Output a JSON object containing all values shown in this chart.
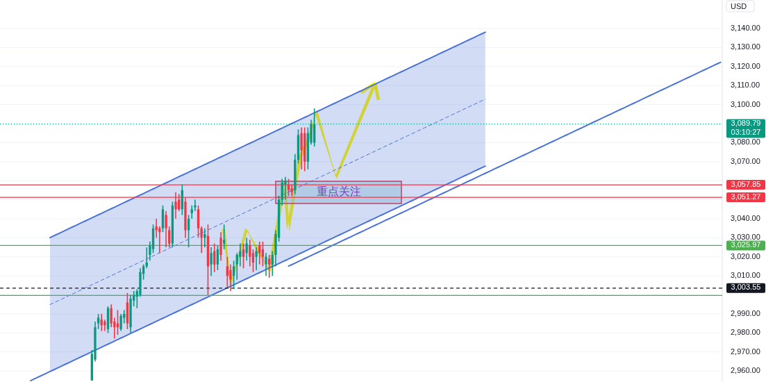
{
  "chart_data": {
    "type": "candlestick",
    "categories": [
      null,
      null,
      null,
      null,
      null,
      null,
      null,
      null,
      null,
      null,
      null,
      null,
      null,
      null,
      null,
      null,
      null,
      null,
      null,
      null,
      null,
      null,
      null,
      null,
      null,
      null,
      null,
      null,
      null,
      null,
      null,
      null,
      null,
      null,
      null,
      null,
      null,
      null,
      null,
      null,
      null,
      null,
      null,
      null,
      null,
      null,
      null,
      null,
      null,
      null,
      null,
      null,
      null,
      null,
      null,
      null,
      null,
      null,
      null,
      null,
      null,
      null,
      null,
      null,
      null,
      null,
      null,
      null,
      null,
      null,
      null,
      null,
      null,
      null,
      null,
      null,
      null,
      null,
      null,
      null,
      null,
      null,
      null,
      null,
      null,
      null,
      null,
      null,
      null,
      null,
      null,
      null,
      null,
      null,
      null,
      null,
      null,
      null,
      null,
      null,
      null,
      null,
      null,
      null,
      null,
      null,
      null,
      null,
      null,
      null,
      null,
      null,
      null,
      null,
      null,
      null,
      null,
      null,
      null,
      null,
      null,
      null,
      null,
      null,
      null,
      null,
      null,
      null,
      null,
      null,
      null,
      null,
      null,
      null,
      null,
      null,
      null,
      null,
      null,
      null,
      null,
      null,
      null,
      null,
      null,
      null,
      null,
      null,
      null,
      null,
      null,
      null,
      null,
      null,
      null,
      null,
      null,
      null,
      null,
      null,
      null,
      null,
      null,
      null,
      null,
      null,
      null,
      null,
      null,
      null,
      null,
      null,
      null,
      null,
      null,
      null,
      null,
      null,
      null,
      null,
      null,
      null,
      null,
      null,
      null,
      null,
      null,
      null,
      null,
      null,
      null,
      null,
      null,
      null,
      null,
      null,
      null,
      null,
      null,
      null,
      null,
      null,
      null,
      null,
      null,
      null,
      null,
      null,
      null,
      null,
      null,
      null,
      null,
      null,
      null,
      null,
      null,
      null,
      null,
      null,
      null,
      null,
      null,
      null
    ],
    "ohlc": [
      null,
      null,
      null,
      null,
      null,
      null,
      null,
      null,
      null,
      null,
      null,
      null,
      null,
      null,
      null,
      null,
      null,
      null,
      null,
      null,
      null,
      null,
      null,
      null,
      null,
      null,
      null,
      null,
      [
        2955,
        2971,
        2955,
        2969
      ],
      [
        2966,
        2986,
        2965,
        2983
      ],
      [
        2985,
        2990,
        2982,
        2988
      ],
      [
        2987,
        2990,
        2981,
        2984
      ],
      [
        2986,
        2987,
        2981,
        2984
      ],
      [
        2982,
        2994,
        2980,
        2993
      ],
      [
        2993,
        2995,
        2983,
        2985
      ],
      [
        2986,
        2988,
        2977,
        2983
      ],
      [
        2985,
        2992,
        2979,
        2983
      ],
      [
        2982,
        2990,
        2981,
        2989
      ],
      [
        2988,
        2992,
        2985,
        2990
      ],
      [
        2996,
        3001,
        2982,
        2985
      ],
      [
        2983,
        3000,
        2980,
        2998
      ],
      [
        2997,
        3002,
        2994,
        3000
      ],
      [
        2999,
        3003,
        2993,
        3002
      ],
      [
        3000,
        3014,
        2999,
        3012
      ],
      [
        3011,
        3016,
        3008,
        3015
      ],
      [
        3015,
        3025,
        3014,
        3017
      ],
      [
        3021,
        3028,
        3018,
        3026
      ],
      [
        3024,
        3037,
        3022,
        3035
      ],
      [
        3036,
        3040,
        3030,
        3034
      ],
      [
        3035,
        3036,
        3022,
        3033
      ],
      [
        3035,
        3047,
        3033,
        3045
      ],
      [
        3042,
        3044,
        3025,
        3035
      ],
      [
        3034,
        3036,
        3025,
        3027
      ],
      [
        3027,
        3049,
        3025,
        3047
      ],
      [
        3049,
        3054,
        3040,
        3045
      ],
      [
        3050,
        3053,
        3044,
        3045
      ],
      [
        3045,
        3058,
        3042,
        3055
      ],
      [
        3049,
        3051,
        3030,
        3034
      ],
      [
        3034,
        3042,
        3025,
        3040
      ],
      [
        3043,
        3047,
        3040,
        3045
      ],
      [
        3046,
        3050,
        3044,
        3047
      ],
      [
        3045,
        3047,
        3030,
        3035
      ],
      [
        3035,
        3036,
        3022,
        3030
      ],
      [
        3030,
        3035,
        3025,
        3032
      ],
      [
        3031,
        3037,
        3000,
        3015
      ],
      [
        3016,
        3025,
        3010,
        3022
      ],
      [
        3023,
        3027,
        3012,
        3016
      ],
      [
        3016,
        3026,
        3013,
        3024
      ],
      [
        3030,
        3033,
        3018,
        3021
      ],
      [
        3027,
        3037,
        3024,
        3029
      ],
      [
        3015,
        3020,
        3004,
        3010
      ],
      [
        3013,
        3016,
        3002,
        3008
      ],
      [
        3010,
        3018,
        3003,
        3015
      ],
      [
        3016,
        3022,
        3008,
        3021
      ],
      [
        3020,
        3027,
        3015,
        3023
      ],
      [
        3024,
        3027,
        3014,
        3020
      ],
      [
        3022,
        3030,
        3018,
        3027
      ],
      [
        3026,
        3029,
        3015,
        3020
      ],
      [
        3022,
        3024,
        3012,
        3017
      ],
      [
        3020,
        3025,
        3013,
        3023
      ],
      [
        3026,
        3028,
        3016,
        3022
      ],
      [
        3024,
        3028,
        3015,
        3020
      ],
      [
        3016,
        3022,
        3010,
        3020
      ],
      [
        3019,
        3021,
        3009,
        3016
      ],
      [
        3016,
        3023,
        3010,
        3021
      ],
      [
        3021,
        3034,
        3015,
        3032
      ],
      [
        3030,
        3052,
        3028,
        3050
      ],
      [
        3050,
        3061,
        3047,
        3059
      ],
      [
        3058,
        3062,
        3050,
        3060
      ],
      [
        3058,
        3061,
        3052,
        3055
      ],
      [
        3056,
        3058,
        3052,
        3054
      ],
      [
        3055,
        3074,
        3053,
        3071
      ],
      [
        3071,
        3087,
        3069,
        3084
      ],
      [
        3085,
        3088,
        3066,
        3076
      ],
      [
        3085,
        3088,
        3065,
        3070
      ],
      [
        3070,
        3088,
        3066,
        3085
      ],
      [
        3080,
        3092,
        3079,
        3090
      ],
      [
        3080,
        3098,
        3078,
        3089.79
      ],
      null,
      null,
      null,
      null,
      null,
      null,
      null,
      null,
      null,
      null,
      null,
      null,
      null,
      null,
      null,
      null,
      null,
      null,
      null,
      null,
      null,
      null,
      null,
      null,
      null,
      null,
      null,
      null,
      null,
      null,
      null,
      null,
      null,
      null,
      null,
      null,
      null,
      null,
      null,
      null,
      null,
      null,
      null,
      null,
      null,
      null,
      null,
      null,
      null,
      null,
      null,
      null,
      null,
      null,
      null,
      null,
      null,
      null,
      null,
      null,
      null,
      null,
      null,
      null,
      null,
      null,
      null,
      null,
      null,
      null,
      null,
      null,
      null,
      null,
      null,
      null,
      null,
      null,
      null,
      null,
      null,
      null,
      null,
      null,
      null,
      null,
      null,
      null,
      null,
      null,
      null,
      null,
      null,
      null,
      null,
      null,
      null,
      null,
      null,
      null,
      null,
      null,
      null,
      null,
      null,
      null,
      null,
      null,
      null,
      null,
      null,
      null,
      null,
      null,
      null,
      null,
      null,
      null,
      null,
      null,
      null,
      null,
      null,
      null,
      null,
      null
    ],
    "series": [
      {
        "type": "line",
        "color": "#4a72d9",
        "values": [
          null,
          null,
          null,
          null,
          null,
          null,
          null,
          null,
          null,
          null,
          null,
          null,
          null,
          null,
          null,
          3030.1,
          3030.9,
          3031.7,
          3032.5,
          3033.3,
          3034.1,
          3034.9,
          3035.7,
          3036.5,
          3037.3,
          3038.1,
          3038.9,
          3039.7,
          3040.5,
          3041.3,
          3042.1,
          3042.9,
          3043.7,
          3044.5,
          3045.3,
          3046.1,
          3046.9,
          3047.7,
          3048.5,
          3049.3,
          3050.1,
          3050.9,
          3051.7,
          3052.5,
          3053.3,
          3054.1,
          3054.9,
          3055.7,
          3056.5,
          3057.3,
          3058.1,
          3058.9,
          3059.7,
          3060.5,
          3061.3,
          3062.1,
          3062.9,
          3063.7,
          3064.5,
          3065.3,
          3066.1,
          3066.9,
          3067.7,
          3068.5,
          3069.3,
          3070.1,
          3070.9,
          3071.7,
          3072.5,
          3073.3,
          3074.1,
          3074.9,
          3075.7,
          3076.5,
          3077.3,
          3078.1,
          3078.9,
          3079.7,
          3080.5,
          3081.3,
          3082.1,
          3082.9,
          3083.7,
          3084.5,
          3085.3,
          3086.1,
          3086.9,
          3087.7,
          3088.5,
          3089.3,
          3090.1,
          3090.9,
          3091.7,
          3092.5,
          3093.3,
          3094.1,
          3094.9,
          3095.7,
          3096.5,
          3097.3,
          3098.1,
          3098.9,
          3099.7,
          3100.5,
          3101.3,
          3102.1,
          3102.9,
          3103.7,
          3104.5,
          3105.3,
          3106.1,
          3106.9,
          3107.7,
          3108.5,
          3109.3,
          3110.1,
          3110.9,
          3111.7,
          3112.5,
          3113.3,
          3114.1,
          3114.9,
          3115.7,
          3116.5,
          3117.3,
          3118.1,
          3118.9,
          3119.7,
          3120.5,
          3121.3,
          3122.1,
          3122.9,
          3123.7,
          3124.5,
          3125.3,
          3126.1,
          3126.9,
          3127.7,
          3128.5,
          3129.3,
          3130.1,
          3130.9,
          3131.7,
          3132.5,
          3133.3,
          3134.1,
          3134.9,
          3135.7,
          3136.5,
          3137.3,
          3138.1,
          null,
          null,
          null,
          null,
          null,
          null,
          null,
          null,
          null,
          null,
          null,
          null,
          null,
          null,
          null,
          null,
          null,
          null,
          null,
          null,
          null,
          null,
          null,
          null,
          null,
          null,
          null,
          null,
          null,
          null,
          null,
          null,
          null,
          null,
          null,
          null,
          null,
          null,
          null,
          null,
          null,
          null,
          null,
          null,
          null,
          null,
          null,
          null,
          null,
          null,
          null,
          null,
          null,
          null,
          null,
          null,
          null,
          null,
          null,
          null,
          null,
          null,
          null,
          null,
          null,
          null,
          null,
          null,
          null,
          null,
          null,
          null,
          null
        ]
      },
      {
        "type": "line",
        "color": "#4a72d9",
        "values": [
          null,
          null,
          null,
          null,
          null,
          null,
          null,
          null,
          null,
          2954.9,
          2955.7,
          2956.5,
          2957.3,
          2958.1,
          2958.9,
          2959.7,
          2960.5,
          2961.3,
          2962.1,
          2962.9,
          2963.7,
          2964.5,
          2965.3,
          2966.1,
          2966.9,
          2967.7,
          2968.5,
          2969.3,
          2970.1,
          2970.9,
          2971.7,
          2972.5,
          2973.3,
          2974.1,
          2974.9,
          2975.7,
          2976.5,
          2977.3,
          2978.1,
          2978.9,
          2979.7,
          2980.5,
          2981.3,
          2982.1,
          2982.9,
          2983.7,
          2984.5,
          2985.3,
          2986.1,
          2986.9,
          2987.7,
          2988.5,
          2989.3,
          2990.1,
          2990.9,
          2991.7,
          2992.5,
          2993.3,
          2994.1,
          2994.9,
          2995.7,
          2996.5,
          2997.3,
          2998.1,
          2998.9,
          2999.7,
          3000.5,
          3001.3,
          3002.1,
          3002.9,
          3003.7,
          3004.5,
          3005.3,
          3006.1,
          3006.9,
          3007.7,
          3008.5,
          3009.3,
          3010.1,
          3010.9,
          3011.7,
          3012.5,
          3013.3,
          3014.1,
          3014.9,
          3015.7,
          3016.5,
          3017.3,
          3018.1,
          3018.9,
          3019.7,
          3020.5,
          3021.3,
          3022.1,
          3022.9,
          3023.7,
          3024.5,
          3025.3,
          3026.1,
          3026.9,
          3027.7,
          3028.5,
          3029.3,
          3030.1,
          3030.9,
          3031.7,
          3032.5,
          3033.3,
          3034.1,
          3034.9,
          3035.7,
          3036.5,
          3037.3,
          3038.1,
          3038.9,
          3039.7,
          3040.5,
          3041.3,
          3042.1,
          3042.9,
          3043.7,
          3044.5,
          3045.3,
          3046.1,
          3046.9,
          3047.7,
          3048.5,
          3049.3,
          3050.1,
          3050.9,
          3051.7,
          3052.5,
          3053.3,
          3054.1,
          3054.9,
          3055.7,
          3056.5,
          3057.3,
          3058.1,
          3058.9,
          3059.7,
          3060.5,
          3061.3,
          3062.1,
          3062.9,
          3063.7,
          3064.5,
          3065.3,
          3066.1,
          3066.9,
          3067.7,
          null,
          null,
          null,
          null,
          null,
          null,
          null,
          null,
          null,
          null,
          null,
          null,
          null,
          null,
          null,
          null,
          null,
          null,
          null,
          null,
          null,
          null,
          null,
          null,
          null,
          null,
          null,
          null,
          null,
          null,
          null,
          null,
          null,
          null,
          null,
          null,
          null,
          null,
          null,
          null,
          null,
          null,
          null,
          null,
          null,
          null,
          null,
          null,
          null,
          null,
          null,
          null,
          null,
          null,
          null,
          null,
          null,
          null,
          null,
          null,
          null,
          null,
          null,
          null,
          null,
          null,
          null,
          null,
          null,
          null,
          null,
          null,
          null
        ]
      },
      {
        "type": "line",
        "color": "#4a72d9",
        "line_style": "dashed",
        "values": [
          null,
          null,
          null,
          null,
          null,
          null,
          null,
          null,
          null,
          null,
          null,
          null,
          null,
          null,
          null,
          2994.9,
          2995.7,
          2996.5,
          2997.3,
          2998.1,
          2998.9,
          2999.7,
          3000.5,
          3001.3,
          3002.1,
          3002.9,
          3003.7,
          3004.5,
          3005.3,
          3006.1,
          3006.9,
          3007.7,
          3008.5,
          3009.3,
          3010.1,
          3010.9,
          3011.7,
          3012.5,
          3013.3,
          3014.1,
          3014.9,
          3015.7,
          3016.5,
          3017.3,
          3018.1,
          3018.9,
          3019.7,
          3020.5,
          3021.3,
          3022.1,
          3022.9,
          3023.7,
          3024.5,
          3025.3,
          3026.1,
          3026.9,
          3027.7,
          3028.5,
          3029.3,
          3030.1,
          3030.9,
          3031.7,
          3032.5,
          3033.3,
          3034.1,
          3034.9,
          3035.7,
          3036.5,
          3037.3,
          3038.1,
          3038.9,
          3039.7,
          3040.5,
          3041.3,
          3042.1,
          3042.9,
          3043.7,
          3044.5,
          3045.3,
          3046.1,
          3046.9,
          3047.7,
          3048.5,
          3049.3,
          3050.1,
          3050.9,
          3051.7,
          3052.5,
          3053.3,
          3054.1,
          3054.9,
          3055.7,
          3056.5,
          3057.3,
          3058.1,
          3058.9,
          3059.7,
          3060.5,
          3061.3,
          3062.1,
          3062.9,
          3063.7,
          3064.5,
          3065.3,
          3066.1,
          3066.9,
          3067.7,
          3068.5,
          3069.3,
          3070.1,
          3070.9,
          3071.7,
          3072.5,
          3073.3,
          3074.1,
          3074.9,
          3075.7,
          3076.5,
          3077.3,
          3078.1,
          3078.9,
          3079.7,
          3080.5,
          3081.3,
          3082.1,
          3082.9,
          3083.7,
          3084.5,
          3085.3,
          3086.1,
          3086.9,
          3087.7,
          3088.5,
          3089.3,
          3090.1,
          3090.9,
          3091.7,
          3092.5,
          3093.3,
          3094.1,
          3094.9,
          3095.7,
          3096.5,
          3097.3,
          3098.1,
          3098.9,
          3099.7,
          3100.5,
          3101.3,
          3102.1,
          3102.9,
          null,
          null,
          null,
          null,
          null,
          null,
          null,
          null,
          null,
          null,
          null,
          null,
          null,
          null,
          null,
          null,
          null,
          null,
          null,
          null,
          null,
          null,
          null,
          null,
          null,
          null,
          null,
          null,
          null,
          null,
          null,
          null,
          null,
          null,
          null,
          null,
          null,
          null,
          null,
          null,
          null,
          null,
          null,
          null,
          null,
          null,
          null,
          null,
          null,
          null,
          null,
          null,
          null,
          null,
          null,
          null,
          null,
          null,
          null,
          null,
          null,
          null,
          null,
          null,
          null,
          null,
          null,
          null,
          null,
          null,
          null,
          null,
          null
        ],
        "lower": [
          null,
          null,
          null,
          null,
          null,
          null,
          null,
          null,
          null,
          null,
          null,
          null,
          null,
          null,
          null,
          2959.7,
          2960.5,
          2961.3,
          2962.1,
          2962.9,
          2963.7,
          2964.5,
          2965.3,
          2966.1,
          2966.9,
          2967.7,
          2968.5,
          2969.3,
          2970.1,
          2970.9,
          2971.7,
          2972.5,
          2973.3,
          2974.1,
          2974.9,
          2975.7,
          2976.5,
          2977.3,
          2978.1,
          2978.9,
          2979.7,
          2980.5,
          2981.3,
          2982.1,
          2982.9,
          2983.7,
          2984.5,
          2985.3,
          2986.1,
          2986.9,
          2987.7,
          2988.5,
          2989.3,
          2990.1,
          2990.9,
          2991.7,
          2992.5,
          2993.3,
          2994.1,
          2994.9,
          2995.7,
          2996.5,
          2997.3,
          2998.1,
          2998.9,
          2999.7,
          3000.5,
          3001.3,
          3002.1,
          3002.9,
          3003.7,
          3004.5,
          3005.3,
          3006.1,
          3006.9,
          3007.7,
          3008.5,
          3009.3,
          3010.1,
          3010.9,
          3011.7,
          3012.5,
          3013.3,
          3014.1,
          3014.9,
          3015.7,
          3016.5,
          3017.3,
          3018.1,
          3018.9,
          3019.7,
          3020.5,
          3021.3,
          3022.1,
          3022.9,
          3023.7,
          3024.5,
          3025.3,
          3026.1,
          3026.9,
          3027.7,
          3028.5,
          3029.3,
          3030.1,
          3030.9,
          3031.7,
          3032.5,
          3033.3,
          3034.1,
          3034.9,
          3035.7,
          3036.5,
          3037.3,
          3038.1,
          3038.9,
          3039.7,
          3040.5,
          3041.3,
          3042.1,
          3042.9,
          3043.7,
          3044.5,
          3045.3,
          3046.1,
          3046.9,
          3047.7,
          3048.5,
          3049.3,
          3050.1,
          3050.9,
          3051.7,
          3052.5,
          3053.3,
          3054.1,
          3054.9,
          3055.7,
          3056.5,
          3057.3,
          3058.1,
          3058.9,
          3059.7,
          3060.5,
          3061.3,
          3062.1,
          3062.9,
          3063.7,
          3064.5,
          3065.3,
          3066.1,
          3066.9,
          3067.7,
          null,
          null,
          null,
          null,
          null,
          null,
          null,
          null,
          null,
          null,
          null,
          null,
          null,
          null,
          null,
          null,
          null,
          null,
          null,
          null,
          null,
          null,
          null,
          null,
          null,
          null,
          null,
          null,
          null,
          null,
          null,
          null,
          null,
          null,
          null,
          null,
          null,
          null,
          null,
          null,
          null,
          null,
          null,
          null,
          null,
          null,
          null,
          null,
          null,
          null,
          null,
          null,
          null,
          null,
          null,
          null,
          null,
          null,
          null,
          null,
          null,
          null,
          null,
          null,
          null,
          null,
          null,
          null,
          null,
          null,
          null,
          null,
          null
        ],
        "upper": [
          null,
          null,
          null,
          null,
          null,
          null,
          null,
          null,
          null,
          null,
          null,
          null,
          null,
          null,
          null,
          3030.1,
          3030.9,
          3031.7,
          3032.5,
          3033.3,
          3034.1,
          3034.9,
          3035.7,
          3036.5,
          3037.3,
          3038.1,
          3038.9,
          3039.7,
          3040.5,
          3041.3,
          3042.1,
          3042.9,
          3043.7,
          3044.5,
          3045.3,
          3046.1,
          3046.9,
          3047.7,
          3048.5,
          3049.3,
          3050.1,
          3050.9,
          3051.7,
          3052.5,
          3053.3,
          3054.1,
          3054.9,
          3055.7,
          3056.5,
          3057.3,
          3058.1,
          3058.9,
          3059.7,
          3060.5,
          3061.3,
          3062.1,
          3062.9,
          3063.7,
          3064.5,
          3065.3,
          3066.1,
          3066.9,
          3067.7,
          3068.5,
          3069.3,
          3070.1,
          3070.9,
          3071.7,
          3072.5,
          3073.3,
          3074.1,
          3074.9,
          3075.7,
          3076.5,
          3077.3,
          3078.1,
          3078.9,
          3079.7,
          3080.5,
          3081.3,
          3082.1,
          3082.9,
          3083.7,
          3084.5,
          3085.3,
          3086.1,
          3086.9,
          3087.7,
          3088.5,
          3089.3,
          3090.1,
          3090.9,
          3091.7,
          3092.5,
          3093.3,
          3094.1,
          3094.9,
          3095.7,
          3096.5,
          3097.3,
          3098.1,
          3098.9,
          3099.7,
          3100.5,
          3101.3,
          3102.1,
          3102.9,
          3103.7,
          3104.5,
          3105.3,
          3106.1,
          3106.9,
          3107.7,
          3108.5,
          3109.3,
          3110.1,
          3110.9,
          3111.7,
          3112.5,
          3113.3,
          3114.1,
          3114.9,
          3115.7,
          3116.5,
          3117.3,
          3118.1,
          3118.9,
          3119.7,
          3120.5,
          3121.3,
          3122.1,
          3122.9,
          3123.7,
          3124.5,
          3125.3,
          3126.1,
          3126.9,
          3127.7,
          3128.5,
          3129.3,
          3130.1,
          3130.9,
          3131.7,
          3132.5,
          3133.3,
          3134.1,
          3134.9,
          3135.7,
          3136.5,
          3137.3,
          3138.1,
          null,
          null,
          null,
          null,
          null,
          null,
          null,
          null,
          null,
          null,
          null,
          null,
          null,
          null,
          null,
          null,
          null,
          null,
          null,
          null,
          null,
          null,
          null,
          null,
          null,
          null,
          null,
          null,
          null,
          null,
          null,
          null,
          null,
          null,
          null,
          null,
          null,
          null,
          null,
          null,
          null,
          null,
          null,
          null,
          null,
          null,
          null,
          null,
          null,
          null,
          null,
          null,
          null,
          null,
          null,
          null,
          null,
          null,
          null,
          null,
          null,
          null,
          null,
          null,
          null,
          null,
          null,
          null,
          null,
          null,
          null,
          null,
          null
        ]
      },
      {
        "type": "line",
        "color": "#4a72d9",
        "values": [
          null,
          null,
          null,
          null,
          null,
          null,
          null,
          null,
          null,
          null,
          null,
          null,
          null,
          null,
          null,
          null,
          null,
          null,
          null,
          null,
          null,
          null,
          null,
          null,
          null,
          null,
          null,
          null,
          null,
          null,
          null,
          null,
          null,
          null,
          null,
          null,
          null,
          null,
          null,
          null,
          null,
          null,
          null,
          null,
          null,
          null,
          null,
          null,
          null,
          null,
          null,
          null,
          null,
          null,
          null,
          null,
          null,
          null,
          null,
          null,
          null,
          null,
          null,
          null,
          null,
          null,
          null,
          null,
          null,
          null,
          null,
          null,
          null,
          null,
          null,
          null,
          null,
          null,
          null,
          null,
          null,
          null,
          null,
          null,
          null,
          null,
          null,
          null,
          null,
          3015.1,
          3015.9,
          3016.7,
          3017.5,
          3018.3,
          3019.1,
          3019.9,
          3020.7,
          3021.5,
          3022.3,
          3023.1,
          3023.9,
          3024.7,
          3025.5,
          3026.3,
          3027.1,
          3027.9,
          3028.7,
          3029.5,
          3030.3,
          3031.1,
          3031.9,
          3032.7,
          3033.5,
          3034.3,
          3035.1,
          3035.9,
          3036.7,
          3037.5,
          3038.3,
          3039.1,
          3039.9,
          3040.7,
          3041.5,
          3042.3,
          3043.1,
          3043.9,
          3044.7,
          3045.5,
          3046.3,
          3047.1,
          3047.9,
          3048.7,
          3049.5,
          3050.3,
          3051.1,
          3051.9,
          3052.7,
          3053.5,
          3054.3,
          3055.1,
          3055.9,
          3056.7,
          3057.5,
          3058.3,
          3059.1,
          3059.9,
          3060.7,
          3061.5,
          3062.3,
          3063.1,
          3063.9,
          3064.7,
          3065.5,
          3066.3,
          3067.1,
          3067.9,
          3068.7,
          3069.5,
          3070.3,
          3071.1,
          3071.9,
          3072.7,
          3073.5,
          3074.3,
          3075.1,
          3075.9,
          3076.7,
          3077.5,
          3078.3,
          3079.1,
          3079.9,
          3080.7,
          3081.5,
          3082.3,
          3083.1,
          3083.9,
          3084.7,
          3085.5,
          3086.3,
          3087.1,
          3087.9,
          3088.7,
          3089.5,
          3090.3,
          3091.1,
          3091.9,
          3092.7,
          3093.5,
          3094.3,
          3095.1,
          3095.9,
          3096.7,
          3097.5,
          3098.3,
          3099.1,
          3099.9,
          3100.7,
          3101.5,
          3102.3,
          3103.1,
          3103.9,
          3104.7,
          3105.5,
          3106.3,
          3107.1,
          3107.9,
          3108.7,
          3109.5,
          3110.3,
          3111.1,
          3111.9,
          3112.7,
          3113.5,
          3114.3,
          3115.1,
          3115.9,
          3116.7,
          3117.5,
          3118.3,
          3119.1,
          3119.9,
          3120.7,
          3121.5,
          3122.3
        ]
      }
    ],
    "ref_lines": [
      {
        "axis": "y",
        "value": 3089.79,
        "label": "3,089.79\n03:10:27",
        "color": "#089981",
        "line_style": "dotted"
      },
      {
        "axis": "y",
        "value": 3057.85,
        "label": "3,057.85",
        "color": "#f23645",
        "line_style": "solid"
      },
      {
        "axis": "y",
        "value": 3051.27,
        "label": "3,051.27",
        "color": "#f23645",
        "line_style": "solid"
      },
      {
        "axis": "y",
        "value": 3025.97,
        "label": "3,025.97",
        "color": "#4caf50",
        "line_style": "solid"
      },
      {
        "axis": "y",
        "value": 2999.73,
        "color": "#4caf50",
        "line_style": "solid"
      },
      {
        "axis": "y",
        "value": 3003.55,
        "label": "3,003.55",
        "color": "#131722",
        "line_style": "dashed"
      }
    ],
    "annotations": [
      "重点关注"
    ],
    "ylabel": "USD",
    "ylim": [
      2954.2,
      3155
    ],
    "yticks": [
      {
        "value": 2960,
        "label": "2,960.00"
      },
      {
        "value": 2970,
        "label": "2,970.00"
      },
      {
        "value": 2980,
        "label": "2,980.00"
      },
      {
        "value": 2990,
        "label": "2,990.00"
      },
      {
        "value": 3000,
        "label": null
      },
      {
        "value": 3010,
        "label": "3,010.00"
      },
      {
        "value": 3020,
        "label": "3,020.00"
      },
      {
        "value": 3030,
        "label": "3,030.00"
      },
      {
        "value": 3040,
        "label": "3,040.00"
      },
      {
        "value": 3050,
        "label": null
      },
      {
        "value": 3060,
        "label": null
      },
      {
        "value": 3070,
        "label": "3,070.00"
      },
      {
        "value": 3080,
        "label": "3,080.00"
      },
      {
        "value": 3090,
        "label": null
      },
      {
        "value": 3100,
        "label": "3,100.00"
      },
      {
        "value": 3110,
        "label": "3,110.00"
      },
      {
        "value": 3120,
        "label": "3,120.00"
      },
      {
        "value": 3130,
        "label": "3,130.00"
      },
      {
        "value": 3140,
        "label": "3,140.00"
      }
    ],
    "tick_labels": "y",
    "grid": "y"
  }
}
